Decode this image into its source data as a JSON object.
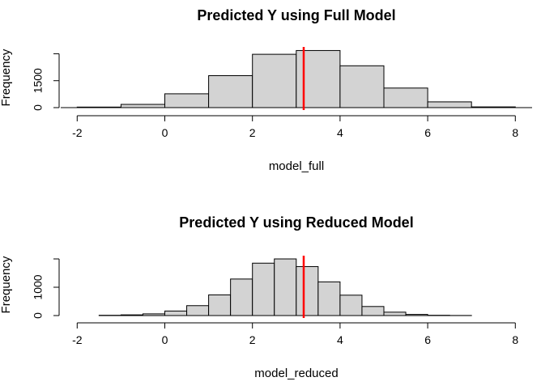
{
  "chart_data": [
    {
      "type": "histogram",
      "title": "Predicted Y using Full Model",
      "xlabel": "model_full",
      "ylabel": "Frequency",
      "bins": [
        {
          "from": -2,
          "to": -1,
          "count": 30
        },
        {
          "from": -1,
          "to": 0,
          "count": 180
        },
        {
          "from": 0,
          "to": 1,
          "count": 770
        },
        {
          "from": 1,
          "to": 2,
          "count": 1780
        },
        {
          "from": 2,
          "to": 3,
          "count": 2970
        },
        {
          "from": 3,
          "to": 4,
          "count": 3180
        },
        {
          "from": 4,
          "to": 5,
          "count": 2330
        },
        {
          "from": 5,
          "to": 6,
          "count": 1090
        },
        {
          "from": 6,
          "to": 7,
          "count": 320
        },
        {
          "from": 7,
          "to": 8,
          "count": 40
        }
      ],
      "vline": {
        "x": 3.17,
        "color": "#ff0000"
      },
      "xticks": [
        -2,
        0,
        2,
        4,
        6,
        8
      ],
      "yticks": [
        0,
        1500
      ],
      "ylim": [
        0,
        3200
      ],
      "bar_color": "#d3d3d3"
    },
    {
      "type": "histogram",
      "title": "Predicted Y using Reduced Model",
      "xlabel": "model_reduced",
      "ylabel": "Frequency",
      "bins": [
        {
          "from": -1.5,
          "to": -1,
          "count": 10
        },
        {
          "from": -1,
          "to": -0.5,
          "count": 25
        },
        {
          "from": -0.5,
          "to": 0,
          "count": 60
        },
        {
          "from": 0,
          "to": 0.5,
          "count": 160
        },
        {
          "from": 0.5,
          "to": 1,
          "count": 350
        },
        {
          "from": 1,
          "to": 1.5,
          "count": 730
        },
        {
          "from": 1.5,
          "to": 2,
          "count": 1290
        },
        {
          "from": 2,
          "to": 2.5,
          "count": 1850
        },
        {
          "from": 2.5,
          "to": 3,
          "count": 2000
        },
        {
          "from": 3,
          "to": 3.5,
          "count": 1730
        },
        {
          "from": 3.5,
          "to": 4,
          "count": 1190
        },
        {
          "from": 4,
          "to": 4.5,
          "count": 720
        },
        {
          "from": 4.5,
          "to": 5,
          "count": 320
        },
        {
          "from": 5,
          "to": 5.5,
          "count": 120
        },
        {
          "from": 5.5,
          "to": 6,
          "count": 40
        },
        {
          "from": 6,
          "to": 6.5,
          "count": 10
        },
        {
          "from": 6.5,
          "to": 7,
          "count": 3
        }
      ],
      "vline": {
        "x": 3.17,
        "color": "#ff0000"
      },
      "xticks": [
        -2,
        0,
        2,
        4,
        6,
        8
      ],
      "yticks": [
        0,
        1000
      ],
      "ylim": [
        0,
        2000
      ],
      "bar_color": "#d3d3d3"
    }
  ]
}
